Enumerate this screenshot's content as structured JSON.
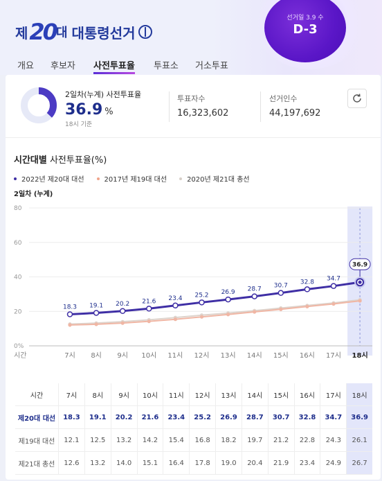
{
  "header": {
    "logo_prefix": "제",
    "logo_number": "20",
    "logo_suffix": "대",
    "logo_title": "대통령선거",
    "badge_label": "선거일 3.9 수",
    "badge_value": "D-3"
  },
  "tabs": [
    {
      "label": "개요",
      "active": false
    },
    {
      "label": "후보자",
      "active": false
    },
    {
      "label": "사전투표율",
      "active": true
    },
    {
      "label": "투표소",
      "active": false
    },
    {
      "label": "거소투표",
      "active": false
    }
  ],
  "summary": {
    "label": "2일차(누계) 사전투표율",
    "value": "36.9",
    "unit": "%",
    "sub": "18시 기준",
    "progress": 0.369,
    "voters_label": "투표자수",
    "voters_value": "16,323,602",
    "electors_label": "선거인수",
    "electors_value": "44,197,692",
    "refresh_icon": "refresh-icon"
  },
  "section": {
    "title_bold": "시간대별",
    "title_rest": " 사전투표율",
    "title_unit": "(%)",
    "day_label": "2일차 (누계)"
  },
  "legend": [
    {
      "label": "2022년 제20대 대선",
      "color": "#3f2fa5"
    },
    {
      "label": "2017년 제19대 대선",
      "color": "#f0a48a"
    },
    {
      "label": "2020년 제21대 총선",
      "color": "#d7cfc8"
    }
  ],
  "colors": {
    "accent": "#3f2fa5",
    "series_2017": "#f0b6a4",
    "series_2020": "#ddd3cc",
    "highlight": "#e3e6fa"
  },
  "chart_data": {
    "type": "line",
    "x_axis_label": "시간",
    "categories": [
      "7시",
      "8시",
      "9시",
      "10시",
      "11시",
      "12시",
      "13시",
      "14시",
      "15시",
      "16시",
      "17시",
      "18시"
    ],
    "ylim": [
      0,
      80
    ],
    "yticks": [
      "0%",
      "20",
      "40",
      "60",
      "80"
    ],
    "grid": true,
    "highlight_category": "18시",
    "series": [
      {
        "name": "제20대 대선",
        "values": [
          18.3,
          19.1,
          20.2,
          21.6,
          23.4,
          25.2,
          26.9,
          28.7,
          30.7,
          32.8,
          34.7,
          36.9
        ]
      },
      {
        "name": "제19대 대선",
        "values": [
          12.1,
          12.5,
          13.2,
          14.2,
          15.4,
          16.8,
          18.2,
          19.7,
          21.2,
          22.8,
          24.3,
          26.1
        ]
      },
      {
        "name": "제21대 총선",
        "values": [
          12.6,
          13.2,
          14.0,
          15.1,
          16.4,
          17.8,
          19.0,
          20.4,
          21.9,
          23.4,
          24.9,
          26.7
        ]
      }
    ]
  },
  "table": {
    "header": "시간"
  }
}
